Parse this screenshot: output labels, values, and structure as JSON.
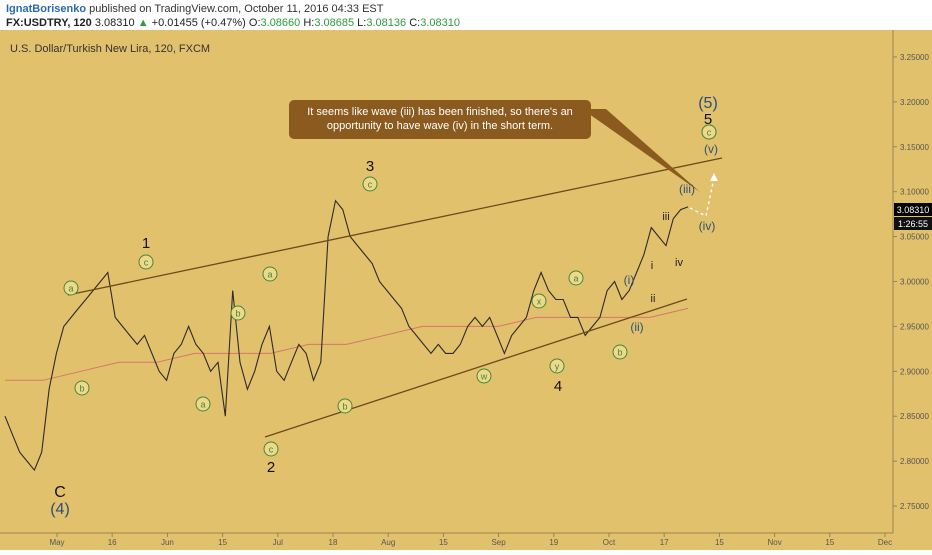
{
  "header": {
    "author": "IgnatBorisenko",
    "published": "published on TradingView.com, October 11, 2016 04:33 EST",
    "symbol": "FX:USDTRY, 120",
    "last": "3.08310",
    "change": "+0.01455 (+0.47%)",
    "o_label": "O:",
    "o_value": "3.08660",
    "h_label": "H:",
    "h_value": "3.08685",
    "l_label": "L:",
    "l_value": "3.08136",
    "c_label": "C:",
    "c_value": "3.08310"
  },
  "colors": {
    "background": "#e2c16c",
    "price": "#2b2b2b",
    "channel": "#6b4a1c",
    "moving_average": "#d9756a",
    "badge_fill": "#efd88a",
    "badge_text": "#3e8a3a",
    "wave_blue": "#2a4f7a",
    "callout": "#8b5a1f",
    "price_tag": "#000000"
  },
  "chart_data": {
    "type": "line",
    "title": "U.S. Dollar/Turkish New Lira, 120, FXCM",
    "xlabel": "",
    "ylabel": "",
    "ylim": [
      2.72,
      3.28
    ],
    "x_ticks": [
      "May",
      "16",
      "Jun",
      "15",
      "Jul",
      "18",
      "Aug",
      "15",
      "Sep",
      "19",
      "Oct",
      "17",
      "15",
      "Nov",
      "15",
      "Dec"
    ],
    "y_ticks": [
      "3.25000",
      "3.20000",
      "3.15000",
      "3.10000",
      "3.05000",
      "3.00000",
      "2.95000",
      "2.90000",
      "2.85000",
      "2.80000",
      "2.75000"
    ],
    "grid": false,
    "series": [
      {
        "values": [
          2.85,
          2.83,
          2.81,
          2.8,
          2.79,
          2.81,
          2.88,
          2.92,
          2.95,
          2.96,
          2.97,
          2.98,
          2.99,
          3.0,
          3.01,
          2.96,
          2.95,
          2.94,
          2.93,
          2.94,
          2.92,
          2.9,
          2.89,
          2.92,
          2.93,
          2.95,
          2.93,
          2.92,
          2.9,
          2.91,
          2.85,
          2.99,
          2.91,
          2.88,
          2.9,
          2.93,
          2.95,
          2.9,
          2.89,
          2.91,
          2.93,
          2.92,
          2.89,
          2.91,
          3.05,
          3.09,
          3.08,
          3.05,
          3.04,
          3.03,
          3.02,
          3.0,
          2.99,
          2.98,
          2.97,
          2.95,
          2.94,
          2.93,
          2.92,
          2.93,
          2.92,
          2.92,
          2.93,
          2.95,
          2.96,
          2.95,
          2.96,
          2.94,
          2.92,
          2.94,
          2.95,
          2.96,
          2.99,
          3.01,
          2.99,
          2.98,
          2.98,
          2.96,
          2.96,
          2.94,
          2.95,
          2.96,
          2.99,
          3.0,
          2.98,
          2.99,
          3.01,
          3.03,
          3.06,
          3.05,
          3.04,
          3.07,
          3.08,
          3.083
        ]
      },
      {
        "values": [
          2.89,
          2.89,
          2.9,
          2.91,
          2.91,
          2.92,
          2.92,
          2.92,
          2.93,
          2.93,
          2.94,
          2.95,
          2.95,
          2.95,
          2.96,
          2.96,
          2.96,
          2.96,
          2.97
        ]
      }
    ],
    "annotations": {
      "channel_upper": "upper trendline from early May to mid-October",
      "channel_lower": "lower trendline from June to early October",
      "callout": "It seems like wave (iii) has been finished, so there's an opportunity to have wave (iv) in the short term.",
      "price_tag": "3.08310",
      "time_tag": "1:26:55",
      "wave_labels": [
        "C",
        "(4)",
        "1",
        "2",
        "3",
        "4",
        "5",
        "(5)",
        "(i)",
        "(ii)",
        "(iii)",
        "(iv)",
        "(v)",
        "i",
        "ii",
        "iii",
        "iv"
      ],
      "badges": [
        "a",
        "b",
        "c",
        "a",
        "b",
        "a",
        "c",
        "c",
        "b",
        "c",
        "w",
        "x",
        "y",
        "a",
        "b",
        "c"
      ]
    }
  }
}
